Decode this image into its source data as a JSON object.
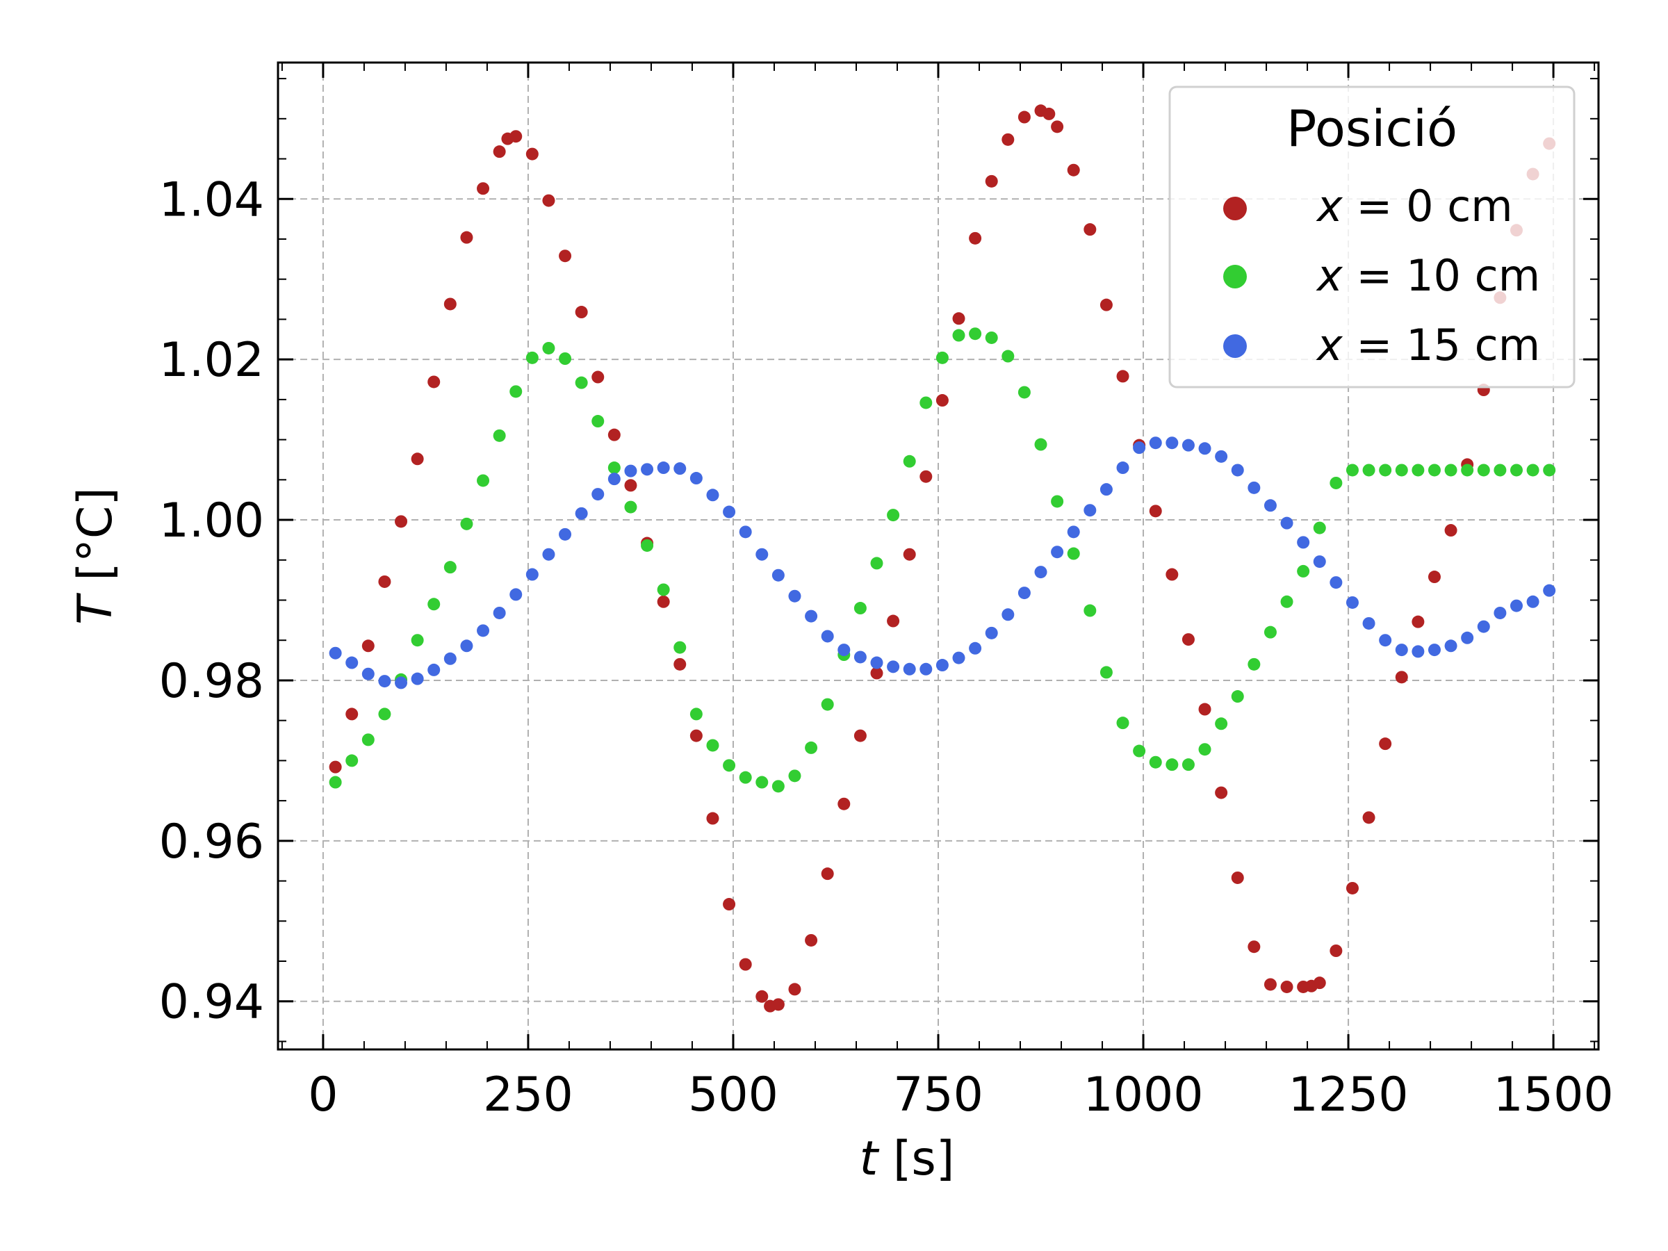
{
  "chart_data": {
    "type": "scatter",
    "title": "",
    "xlabel_var": "t",
    "xlabel_unit": "[s]",
    "ylabel_var": "T",
    "ylabel_unit": "[°C]",
    "xlim": [
      -55,
      1555
    ],
    "ylim": [
      0.934,
      1.057
    ],
    "x_ticks": [
      0,
      250,
      500,
      750,
      1000,
      1250,
      1500
    ],
    "x_tick_labels": [
      "0",
      "250",
      "500",
      "750",
      "1000",
      "1250",
      "1500"
    ],
    "y_ticks": [
      0.94,
      0.96,
      0.98,
      1.0,
      1.02,
      1.04
    ],
    "y_tick_labels": [
      "0.94",
      "0.96",
      "0.98",
      "1.00",
      "1.02",
      "1.04"
    ],
    "grid": true,
    "legend": {
      "title": "Posició",
      "placement": "top-right"
    },
    "series": [
      {
        "name_var": "x",
        "name_rest": " = 0 cm",
        "color": "#b22222",
        "x": [
          15,
          35,
          55,
          75,
          95,
          115,
          135,
          155,
          175,
          195,
          215,
          225,
          235,
          255,
          275,
          295,
          315,
          335,
          355,
          375,
          395,
          415,
          435,
          455,
          475,
          495,
          515,
          535,
          545,
          555,
          575,
          595,
          615,
          635,
          655,
          675,
          695,
          715,
          735,
          755,
          775,
          795,
          815,
          835,
          855,
          875,
          885,
          895,
          915,
          935,
          955,
          975,
          995,
          1015,
          1035,
          1055,
          1075,
          1095,
          1115,
          1135,
          1155,
          1175,
          1195,
          1205,
          1215,
          1235,
          1255,
          1275,
          1295,
          1315,
          1335,
          1355,
          1375,
          1395,
          1415,
          1435,
          1455,
          1475,
          1495
        ],
        "y": [
          0.9692,
          0.9758,
          0.9843,
          0.9923,
          0.9998,
          1.0076,
          1.0172,
          1.0269,
          1.0352,
          1.0413,
          1.0459,
          1.0475,
          1.0478,
          1.0456,
          1.0398,
          1.0329,
          1.0259,
          1.0178,
          1.0106,
          1.0043,
          0.9971,
          0.9898,
          0.982,
          0.9731,
          0.9628,
          0.9521,
          0.9446,
          0.9406,
          0.9394,
          0.9396,
          0.9415,
          0.9476,
          0.9559,
          0.9646,
          0.9731,
          0.9809,
          0.9874,
          0.9957,
          1.0054,
          1.0149,
          1.0251,
          1.0351,
          1.0422,
          1.0474,
          1.0502,
          1.051,
          1.0506,
          1.049,
          1.0436,
          1.0362,
          1.0268,
          1.0179,
          1.0093,
          1.0011,
          0.9932,
          0.9851,
          0.9764,
          0.966,
          0.9554,
          0.9468,
          0.9421,
          0.9418,
          0.9418,
          0.9419,
          0.9423,
          0.9463,
          0.9541,
          0.9629,
          0.9721,
          0.9804,
          0.9873,
          0.9929,
          0.9987,
          1.0069,
          1.0162,
          1.0277,
          1.0361,
          1.0431,
          1.0469
        ]
      },
      {
        "name_var": "x",
        "name_rest": " = 10 cm",
        "color": "#32cd32",
        "x": [
          15,
          35,
          55,
          75,
          95,
          115,
          135,
          155,
          175,
          195,
          215,
          235,
          255,
          275,
          295,
          315,
          335,
          355,
          375,
          395,
          415,
          435,
          455,
          475,
          495,
          515,
          535,
          555,
          575,
          595,
          615,
          635,
          655,
          675,
          695,
          715,
          735,
          755,
          775,
          795,
          815,
          835,
          855,
          875,
          895,
          915,
          935,
          955,
          975,
          995,
          1015,
          1035,
          1055,
          1075,
          1095,
          1115,
          1135,
          1155,
          1175,
          1195,
          1215,
          1235,
          1255,
          1275,
          1295,
          1315,
          1335,
          1355,
          1375,
          1395,
          1415,
          1435,
          1455,
          1475,
          1495
        ],
        "y": [
          0.9673,
          0.97,
          0.9726,
          0.9758,
          0.9801,
          0.985,
          0.9895,
          0.9941,
          0.9995,
          1.0049,
          1.0105,
          1.016,
          1.0202,
          1.0214,
          1.0201,
          1.0171,
          1.0123,
          1.0065,
          1.0016,
          0.9968,
          0.9913,
          0.9841,
          0.9758,
          0.9719,
          0.9694,
          0.9679,
          0.9673,
          0.9668,
          0.9681,
          0.9716,
          0.977,
          0.9832,
          0.989,
          0.9946,
          1.0006,
          1.0073,
          1.0146,
          1.0202,
          1.023,
          1.0232,
          1.0227,
          1.0204,
          1.0159,
          1.0094,
          1.0023,
          0.9958,
          0.9887,
          0.981,
          0.9747,
          0.9712,
          0.9698,
          0.9695,
          0.9695,
          0.9714,
          0.9746,
          0.978,
          0.982,
          0.986,
          0.9898,
          0.9936,
          0.999,
          1.0046,
          1.0062,
          1.0062,
          1.0062,
          1.0062,
          1.0062,
          1.0062,
          1.0062,
          1.0062,
          1.0062,
          1.0062,
          1.0062,
          1.0062,
          1.0062
        ]
      },
      {
        "name_var": "x",
        "name_rest": " = 15 cm",
        "color": "#4169e1",
        "x": [
          15,
          35,
          55,
          75,
          95,
          115,
          135,
          155,
          175,
          195,
          215,
          235,
          255,
          275,
          295,
          315,
          335,
          355,
          375,
          395,
          415,
          435,
          455,
          475,
          495,
          515,
          535,
          555,
          575,
          595,
          615,
          635,
          655,
          675,
          695,
          715,
          735,
          755,
          775,
          795,
          815,
          835,
          855,
          875,
          895,
          915,
          935,
          955,
          975,
          995,
          1015,
          1035,
          1055,
          1075,
          1095,
          1115,
          1135,
          1155,
          1175,
          1195,
          1215,
          1235,
          1255,
          1275,
          1295,
          1315,
          1335,
          1355,
          1375,
          1395,
          1415,
          1435,
          1455,
          1475,
          1495
        ],
        "y": [
          0.9834,
          0.9822,
          0.9808,
          0.9799,
          0.9797,
          0.9802,
          0.9813,
          0.9827,
          0.9843,
          0.9862,
          0.9884,
          0.9907,
          0.9932,
          0.9957,
          0.9982,
          1.0008,
          1.0032,
          1.0051,
          1.0061,
          1.0063,
          1.0065,
          1.0064,
          1.0052,
          1.0031,
          1.001,
          0.9985,
          0.9957,
          0.9931,
          0.9905,
          0.988,
          0.9855,
          0.9838,
          0.9829,
          0.9822,
          0.9817,
          0.9814,
          0.9814,
          0.9819,
          0.9828,
          0.984,
          0.9859,
          0.9882,
          0.9909,
          0.9935,
          0.996,
          0.9985,
          1.0012,
          1.0038,
          1.0065,
          1.009,
          1.0096,
          1.0096,
          1.0093,
          1.0089,
          1.0079,
          1.0062,
          1.004,
          1.0018,
          0.9996,
          0.9972,
          0.9948,
          0.9922,
          0.9897,
          0.9871,
          0.985,
          0.9838,
          0.9836,
          0.9838,
          0.9843,
          0.9853,
          0.9867,
          0.9884,
          0.9893,
          0.9898,
          0.9912
        ]
      }
    ]
  }
}
